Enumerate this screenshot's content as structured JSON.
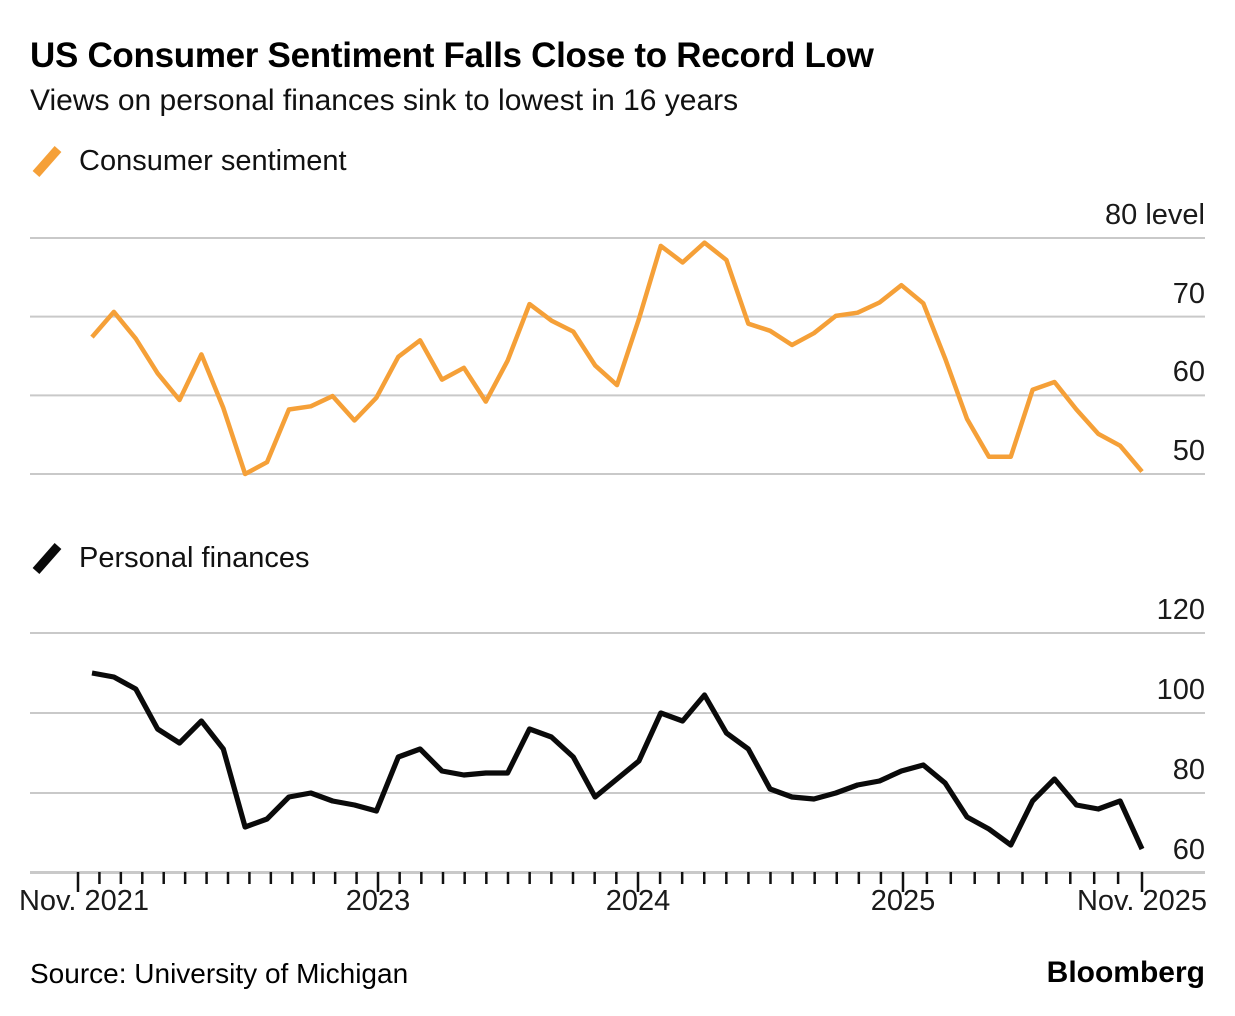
{
  "header": {
    "title": "US Consumer Sentiment Falls Close to Record Low",
    "subtitle": "Views on personal finances sink to lowest in 16 years"
  },
  "colors": {
    "sentiment_orange": "#F5A038",
    "finances_black": "#0a0a0a",
    "gridline_gray": "#c9c9c9",
    "tick_black": "#111111"
  },
  "chart_data": [
    {
      "type": "line",
      "name": "Consumer sentiment",
      "color": "#F5A038",
      "frequency": "monthly",
      "x_start": "Nov. 2021",
      "x_end": "Nov. 2025",
      "months": [
        "2021-11",
        "2021-12",
        "2022-01",
        "2022-02",
        "2022-03",
        "2022-04",
        "2022-05",
        "2022-06",
        "2022-07",
        "2022-08",
        "2022-09",
        "2022-10",
        "2022-11",
        "2022-12",
        "2023-01",
        "2023-02",
        "2023-03",
        "2023-04",
        "2023-05",
        "2023-06",
        "2023-07",
        "2023-08",
        "2023-09",
        "2023-10",
        "2023-11",
        "2023-12",
        "2024-01",
        "2024-02",
        "2024-03",
        "2024-04",
        "2024-05",
        "2024-06",
        "2024-07",
        "2024-08",
        "2024-09",
        "2024-10",
        "2024-11",
        "2024-12",
        "2025-01",
        "2025-02",
        "2025-03",
        "2025-04",
        "2025-05",
        "2025-06",
        "2025-07",
        "2025-08",
        "2025-09",
        "2025-10",
        "2025-11"
      ],
      "values": [
        67.4,
        70.6,
        67.2,
        62.8,
        59.4,
        65.2,
        58.4,
        50.0,
        51.5,
        58.2,
        58.6,
        59.9,
        56.8,
        59.7,
        64.9,
        67.0,
        62.0,
        63.5,
        59.2,
        64.4,
        71.6,
        69.5,
        68.1,
        63.8,
        61.3,
        69.7,
        79.0,
        76.9,
        79.4,
        77.2,
        69.1,
        68.2,
        66.4,
        67.9,
        70.1,
        70.5,
        71.8,
        74.0,
        71.7,
        64.7,
        57.0,
        52.2,
        52.2,
        60.7,
        61.7,
        58.2,
        55.1,
        53.6,
        50.3
      ],
      "yticks": [
        {
          "value": 80,
          "label": "80 level"
        },
        {
          "value": 70,
          "label": "70"
        },
        {
          "value": 60,
          "label": "60"
        },
        {
          "value": 50,
          "label": "50"
        }
      ],
      "ylim": [
        48,
        82
      ],
      "grid": true,
      "legend_position": "top-left"
    },
    {
      "type": "line",
      "name": "Personal finances",
      "color": "#0a0a0a",
      "frequency": "monthly",
      "x_start": "Nov. 2021",
      "x_end": "Nov. 2025",
      "months": [
        "2021-11",
        "2021-12",
        "2022-01",
        "2022-02",
        "2022-03",
        "2022-04",
        "2022-05",
        "2022-06",
        "2022-07",
        "2022-08",
        "2022-09",
        "2022-10",
        "2022-11",
        "2022-12",
        "2023-01",
        "2023-02",
        "2023-03",
        "2023-04",
        "2023-05",
        "2023-06",
        "2023-07",
        "2023-08",
        "2023-09",
        "2023-10",
        "2023-11",
        "2023-12",
        "2024-01",
        "2024-02",
        "2024-03",
        "2024-04",
        "2024-05",
        "2024-06",
        "2024-07",
        "2024-08",
        "2024-09",
        "2024-10",
        "2024-11",
        "2024-12",
        "2025-01",
        "2025-02",
        "2025-03",
        "2025-04",
        "2025-05",
        "2025-06",
        "2025-07",
        "2025-08",
        "2025-09",
        "2025-10",
        "2025-11"
      ],
      "values": [
        110,
        109,
        106,
        96,
        92.5,
        98,
        91,
        71.5,
        73.5,
        79,
        80,
        78,
        77,
        75.5,
        89,
        91,
        85.5,
        84.5,
        85,
        85,
        96,
        94,
        89,
        79,
        83.5,
        88,
        100,
        98,
        104.5,
        95,
        91,
        81,
        79,
        78.5,
        80,
        82,
        83,
        85.5,
        87,
        82.5,
        74,
        71,
        67,
        78,
        83.5,
        77,
        76,
        78,
        66
      ],
      "yticks": [
        {
          "value": 120,
          "label": "120"
        },
        {
          "value": 100,
          "label": "100"
        },
        {
          "value": 80,
          "label": "80"
        },
        {
          "value": 60,
          "label": "60"
        }
      ],
      "ylim": [
        58,
        122
      ],
      "grid": true,
      "legend_position": "top-left"
    }
  ],
  "x_axis": {
    "labels": [
      "Nov. 2021",
      "2023",
      "2024",
      "2025",
      "Nov. 2025"
    ]
  },
  "footer": {
    "source": "Source: University of Michigan",
    "brand": "Bloomberg"
  }
}
